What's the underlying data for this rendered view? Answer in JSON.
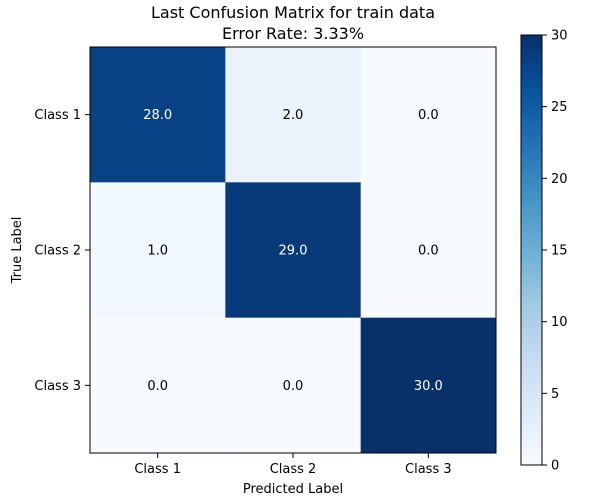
{
  "chart_data": {
    "type": "heatmap",
    "title": "Last Confusion Matrix for train data",
    "subtitle": "Error Rate: 3.33%",
    "xlabel": "Predicted Label",
    "ylabel": "True Label",
    "x_categories": [
      "Class 1",
      "Class 2",
      "Class 3"
    ],
    "y_categories": [
      "Class 1",
      "Class 2",
      "Class 3"
    ],
    "matrix": [
      [
        28.0,
        2.0,
        0.0
      ],
      [
        1.0,
        29.0,
        0.0
      ],
      [
        0.0,
        0.0,
        30.0
      ]
    ],
    "cell_labels": [
      [
        "28.0",
        "2.0",
        "0.0"
      ],
      [
        "1.0",
        "29.0",
        "0.0"
      ],
      [
        "0.0",
        "0.0",
        "30.0"
      ]
    ],
    "colorbar": {
      "range": [
        0,
        30
      ],
      "ticks": [
        0,
        5,
        10,
        15,
        20,
        25,
        30
      ],
      "colormap": "Blues",
      "color_low": "#f7fbff",
      "color_high": "#08306b"
    }
  }
}
